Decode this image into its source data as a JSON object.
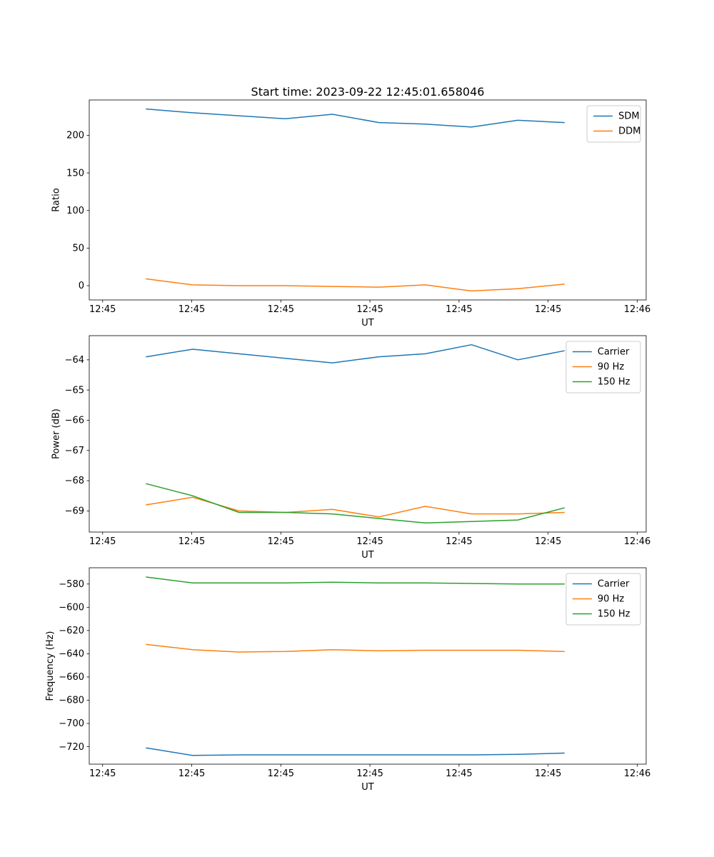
{
  "figure": {
    "background": "#ffffff"
  },
  "colors": {
    "blue": "#1f77b4",
    "orange": "#ff7f0e",
    "green": "#2ca02c"
  },
  "chart_data": [
    {
      "type": "line",
      "title": "Start time: 2023-09-22 12:45:01.658046",
      "xlabel": "UT",
      "ylabel": "Ratio",
      "x_unit": "seconds after 12:45:00 UT",
      "x": [
        4.9,
        10.1,
        15.3,
        20.5,
        25.8,
        31.0,
        36.2,
        41.4,
        46.6,
        51.8
      ],
      "xlim": [
        -1.5,
        61
      ],
      "ylim": [
        -19,
        247
      ],
      "xticks": {
        "values": [
          0,
          10,
          20,
          30,
          40,
          50,
          60
        ],
        "labels": [
          "12:45",
          "12:45",
          "12:45",
          "12:45",
          "12:45",
          "12:45",
          "12:46"
        ]
      },
      "yticks": {
        "values": [
          0,
          50,
          100,
          150,
          200
        ],
        "labels": [
          "0",
          "50",
          "100",
          "150",
          "200"
        ]
      },
      "grid": false,
      "legend_position": "upper right",
      "series": [
        {
          "name": "SDM",
          "color": "#1f77b4",
          "values": [
            235,
            230,
            226,
            222,
            228,
            217,
            215,
            211,
            220,
            217
          ]
        },
        {
          "name": "DDM",
          "color": "#ff7f0e",
          "values": [
            9,
            1,
            0,
            0,
            -1,
            -2,
            1,
            -7,
            -4,
            2
          ]
        }
      ]
    },
    {
      "type": "line",
      "title": "",
      "xlabel": "UT",
      "ylabel": "Power (dB)",
      "x_unit": "seconds after 12:45:00 UT",
      "x": [
        4.9,
        10.1,
        15.3,
        20.5,
        25.8,
        31.0,
        36.2,
        41.4,
        46.6,
        51.8
      ],
      "xlim": [
        -1.5,
        61
      ],
      "ylim": [
        -69.7,
        -63.2
      ],
      "xticks": {
        "values": [
          0,
          10,
          20,
          30,
          40,
          50,
          60
        ],
        "labels": [
          "12:45",
          "12:45",
          "12:45",
          "12:45",
          "12:45",
          "12:45",
          "12:46"
        ]
      },
      "yticks": {
        "values": [
          -64,
          -65,
          -66,
          -67,
          -68,
          -69
        ],
        "labels": [
          "−64",
          "−65",
          "−66",
          "−67",
          "−68",
          "−69"
        ]
      },
      "grid": false,
      "legend_position": "upper right",
      "series": [
        {
          "name": "Carrier",
          "color": "#1f77b4",
          "values": [
            -63.9,
            -63.65,
            -63.8,
            -63.95,
            -64.1,
            -63.9,
            -63.8,
            -63.5,
            -64.0,
            -63.7
          ]
        },
        {
          "name": "90 Hz",
          "color": "#ff7f0e",
          "values": [
            -68.8,
            -68.55,
            -69.0,
            -69.05,
            -68.95,
            -69.2,
            -68.85,
            -69.1,
            -69.1,
            -69.05
          ]
        },
        {
          "name": "150 Hz",
          "color": "#2ca02c",
          "values": [
            -68.1,
            -68.5,
            -69.05,
            -69.05,
            -69.1,
            -69.25,
            -69.4,
            -69.35,
            -69.3,
            -68.9
          ]
        }
      ]
    },
    {
      "type": "line",
      "title": "",
      "xlabel": "UT",
      "ylabel": "Frequency (Hz)",
      "x_unit": "seconds after 12:45:00 UT",
      "x": [
        4.9,
        10.1,
        15.3,
        20.5,
        25.8,
        31.0,
        36.2,
        41.4,
        46.6,
        51.8
      ],
      "xlim": [
        -1.5,
        61
      ],
      "ylim": [
        -735,
        -566
      ],
      "xticks": {
        "values": [
          0,
          10,
          20,
          30,
          40,
          50,
          60
        ],
        "labels": [
          "12:45",
          "12:45",
          "12:45",
          "12:45",
          "12:45",
          "12:45",
          "12:46"
        ]
      },
      "yticks": {
        "values": [
          -580,
          -600,
          -620,
          -640,
          -660,
          -680,
          -700,
          -720
        ],
        "labels": [
          "−580",
          "−600",
          "−620",
          "−640",
          "−660",
          "−680",
          "−700",
          "−720"
        ]
      },
      "grid": false,
      "legend_position": "upper right",
      "series": [
        {
          "name": "Carrier",
          "color": "#1f77b4",
          "values": [
            -721,
            -727.5,
            -727,
            -727,
            -727,
            -727,
            -727,
            -727,
            -726.5,
            -725.5
          ]
        },
        {
          "name": "90 Hz",
          "color": "#ff7f0e",
          "values": [
            -632,
            -636.5,
            -638.5,
            -638,
            -636.5,
            -637.5,
            -637,
            -637,
            -637,
            -638
          ]
        },
        {
          "name": "150 Hz",
          "color": "#2ca02c",
          "values": [
            -574,
            -579,
            -579,
            -579,
            -578.5,
            -579,
            -579,
            -579.5,
            -580,
            -580
          ]
        }
      ]
    }
  ]
}
